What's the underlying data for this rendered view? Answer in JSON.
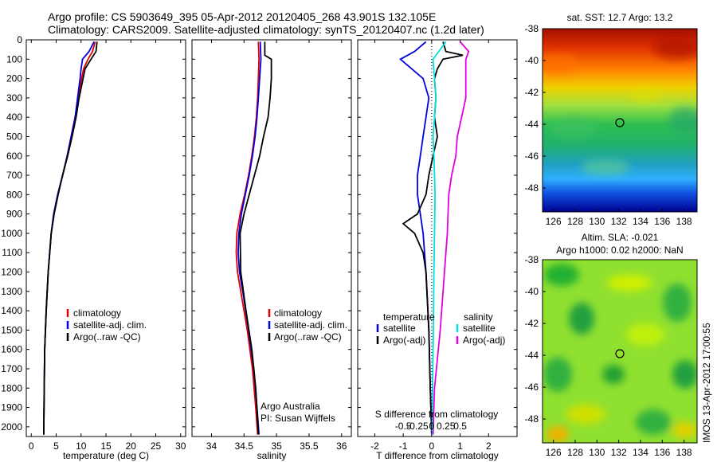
{
  "header": {
    "line1": "Argo profile: CS 5903649_395 05-Apr-2012 20120405_268 43.901S 132.105E",
    "line2": "Climatology: CARS2009. Satellite-adjusted climatology: synTS_20120407.nc (1.2d later)"
  },
  "colors": {
    "clim": "#e00000",
    "sat": "#0000e0",
    "argo": "#000000",
    "cyan": "#00e0e0",
    "magenta": "#e000e0"
  },
  "chart_data": [
    {
      "type": "line",
      "id": "temperature",
      "xlabel": "temperature (deg C)",
      "xlim": [
        -1,
        31
      ],
      "xticks": [
        0,
        5,
        10,
        15,
        20,
        25,
        30
      ],
      "ylim": [
        2050,
        0
      ],
      "yticks": [
        0,
        100,
        200,
        300,
        400,
        500,
        600,
        700,
        800,
        900,
        1000,
        1100,
        1200,
        1300,
        1400,
        1500,
        1600,
        1700,
        1800,
        1900,
        2000
      ],
      "legend": [
        "climatology",
        "satellite-adj. clim.",
        "Argo(..raw -QC)"
      ],
      "series": [
        {
          "name": "climatology",
          "color": "#e00000",
          "depth": [
            10,
            60,
            100,
            150,
            200,
            300,
            400,
            500,
            600,
            700,
            800,
            900,
            1000,
            1200,
            1400,
            1600,
            1800,
            2040
          ],
          "values": [
            12.8,
            12.3,
            11.4,
            10.5,
            10.1,
            9.4,
            8.8,
            8.0,
            7.2,
            6.3,
            5.3,
            4.5,
            4.0,
            3.4,
            3.0,
            2.7,
            2.6,
            2.5
          ]
        },
        {
          "name": "satellite-adj. clim.",
          "color": "#0000e0",
          "depth": [
            10,
            60,
            100,
            150,
            200,
            300,
            400,
            500,
            600,
            700,
            800,
            900,
            1000,
            1200,
            1400,
            1600,
            1800,
            2040
          ],
          "values": [
            12.6,
            11.6,
            10.3,
            10.0,
            9.8,
            9.3,
            8.8,
            8.0,
            7.2,
            6.3,
            5.3,
            4.5,
            4.0,
            3.4,
            3.0,
            2.7,
            2.6,
            2.5
          ]
        },
        {
          "name": "Argo(..raw -QC)",
          "color": "#000000",
          "depth": [
            10,
            60,
            100,
            150,
            200,
            300,
            400,
            500,
            600,
            700,
            800,
            900,
            1000,
            1200,
            1400,
            1600,
            1800,
            2040
          ],
          "values": [
            13.2,
            13.0,
            12.0,
            10.8,
            10.4,
            9.6,
            9.0,
            8.2,
            7.3,
            6.3,
            5.4,
            4.6,
            4.0,
            3.4,
            3.0,
            2.7,
            2.6,
            2.5
          ]
        }
      ]
    },
    {
      "type": "line",
      "id": "salinity",
      "xlabel": "salinity",
      "xlim": [
        33.7,
        36.15
      ],
      "xticks": [
        34,
        34.5,
        35,
        35.5,
        36
      ],
      "ylim": [
        2050,
        0
      ],
      "legend": [
        "climatology",
        "satellite-adj. clim.",
        "Argo(..raw -QC)"
      ],
      "annotation": [
        "Argo Australia",
        "PI: Susan Wijffels"
      ],
      "series": [
        {
          "name": "climatology",
          "color": "#e00000",
          "depth": [
            10,
            100,
            200,
            300,
            400,
            500,
            600,
            700,
            800,
            900,
            1000,
            1100,
            1200,
            1300,
            1500,
            1700,
            1900,
            2040
          ],
          "values": [
            34.72,
            34.73,
            34.72,
            34.71,
            34.69,
            34.66,
            34.62,
            34.57,
            34.51,
            34.44,
            34.39,
            34.38,
            34.4,
            34.45,
            34.55,
            34.63,
            34.68,
            34.71
          ]
        },
        {
          "name": "satellite-adj. clim.",
          "color": "#0000e0",
          "depth": [
            10,
            100,
            200,
            300,
            400,
            500,
            600,
            700,
            800,
            900,
            1000,
            1100,
            1200,
            1300,
            1500,
            1700,
            1900,
            2040
          ],
          "values": [
            34.75,
            34.76,
            34.74,
            34.72,
            34.7,
            34.67,
            34.63,
            34.58,
            34.52,
            34.46,
            34.42,
            34.41,
            34.43,
            34.48,
            34.57,
            34.65,
            34.7,
            34.73
          ]
        },
        {
          "name": "Argo(..raw -QC)",
          "color": "#000000",
          "depth": [
            10,
            80,
            100,
            200,
            300,
            400,
            500,
            600,
            700,
            800,
            900,
            1000,
            1200,
            1400,
            1600,
            1800,
            2040
          ],
          "values": [
            34.82,
            34.82,
            34.92,
            34.92,
            34.9,
            34.87,
            34.8,
            34.74,
            34.66,
            34.58,
            34.5,
            34.44,
            34.45,
            34.53,
            34.62,
            34.68,
            34.72
          ]
        }
      ]
    },
    {
      "type": "line",
      "id": "difference",
      "xlabel": "T difference from climatology",
      "xlabel2": "S difference from climatology",
      "xlim": [
        -2.6,
        3.0
      ],
      "xticks": [
        -2,
        -1,
        0,
        1,
        2
      ],
      "sticks": [
        -0.5,
        -0.25,
        0,
        0.25,
        0.5
      ],
      "sticklabels": [
        "-0.5",
        "-0.25",
        "0",
        "0.25",
        "0.5"
      ],
      "legend_title_t": "temperature",
      "legend_title_s": "salinity",
      "legend": [
        "satellite",
        "Argo(-adj)",
        "satellite",
        "Argo(-adj)"
      ],
      "series": [
        {
          "name": "satellite",
          "color": "#0000e0",
          "depth": [
            10,
            60,
            100,
            200,
            300,
            400,
            500,
            600,
            700,
            800,
            900,
            1000,
            1200,
            1500,
            1800,
            2040
          ],
          "values": [
            -0.2,
            -0.6,
            -1.1,
            -0.3,
            -0.1,
            -0.2,
            -0.3,
            -0.4,
            -0.5,
            -0.5,
            -0.4,
            -0.3,
            -0.2,
            -0.1,
            -0.05,
            0
          ]
        },
        {
          "name": "Argo(-adj)",
          "color": "#000000",
          "depth": [
            10,
            60,
            80,
            100,
            150,
            200,
            300,
            400,
            500,
            600,
            700,
            800,
            900,
            950,
            1000,
            1100,
            1200,
            1500,
            1800,
            2040
          ],
          "values": [
            0.4,
            0.5,
            1.1,
            0.4,
            0.2,
            0.1,
            0.15,
            0.1,
            0.2,
            0.05,
            -0.1,
            -0.2,
            -0.5,
            -1.0,
            -0.6,
            -0.3,
            -0.2,
            -0.1,
            -0.05,
            0
          ]
        },
        {
          "name": "satellite",
          "color": "#00e0e0",
          "depth": [
            10,
            60,
            100,
            200,
            300,
            400,
            500,
            600,
            700,
            800,
            1000,
            1200,
            1500,
            1800,
            2040
          ],
          "values": [
            0.5,
            0.25,
            0.05,
            0.1,
            0.15,
            0.1,
            0.05,
            0.08,
            0.1,
            0.12,
            0.1,
            0.08,
            0.06,
            0.03,
            0.02
          ]
        },
        {
          "name": "Argo(-adj)",
          "color": "#e000e0",
          "depth": [
            10,
            60,
            100,
            200,
            300,
            400,
            500,
            600,
            700,
            800,
            1000,
            1200,
            1500,
            1800,
            2040
          ],
          "values": [
            1.0,
            1.3,
            1.2,
            1.2,
            1.2,
            1.05,
            0.9,
            0.85,
            0.7,
            0.6,
            0.55,
            0.45,
            0.3,
            0.1,
            0.05
          ]
        }
      ]
    },
    {
      "type": "heatmap",
      "id": "sst_map",
      "title": "sat. SST: 12.7 Argo: 13.2",
      "xlim": [
        125,
        139.2
      ],
      "xticks": [
        126,
        128,
        130,
        132,
        134,
        136,
        138
      ],
      "ylim": [
        -49.5,
        -38
      ],
      "yticks": [
        -48,
        -46,
        -44,
        -42,
        -40,
        -38
      ],
      "marker": [
        132.1,
        -43.9
      ]
    },
    {
      "type": "heatmap",
      "id": "sla_map",
      "title_line1": "Altim. SLA: -0.021",
      "title_line2": "Argo h1000: 0.02 h2000: NaN",
      "xlim": [
        125,
        139.2
      ],
      "xticks": [
        126,
        128,
        130,
        132,
        134,
        136,
        138
      ],
      "ylim": [
        -49.5,
        -38
      ],
      "yticks": [
        -48,
        -46,
        -44,
        -42,
        -40,
        -38
      ],
      "marker": [
        132.1,
        -43.9
      ]
    }
  ],
  "side_label": "IMOS 13-Apr-2012 17:00:55"
}
